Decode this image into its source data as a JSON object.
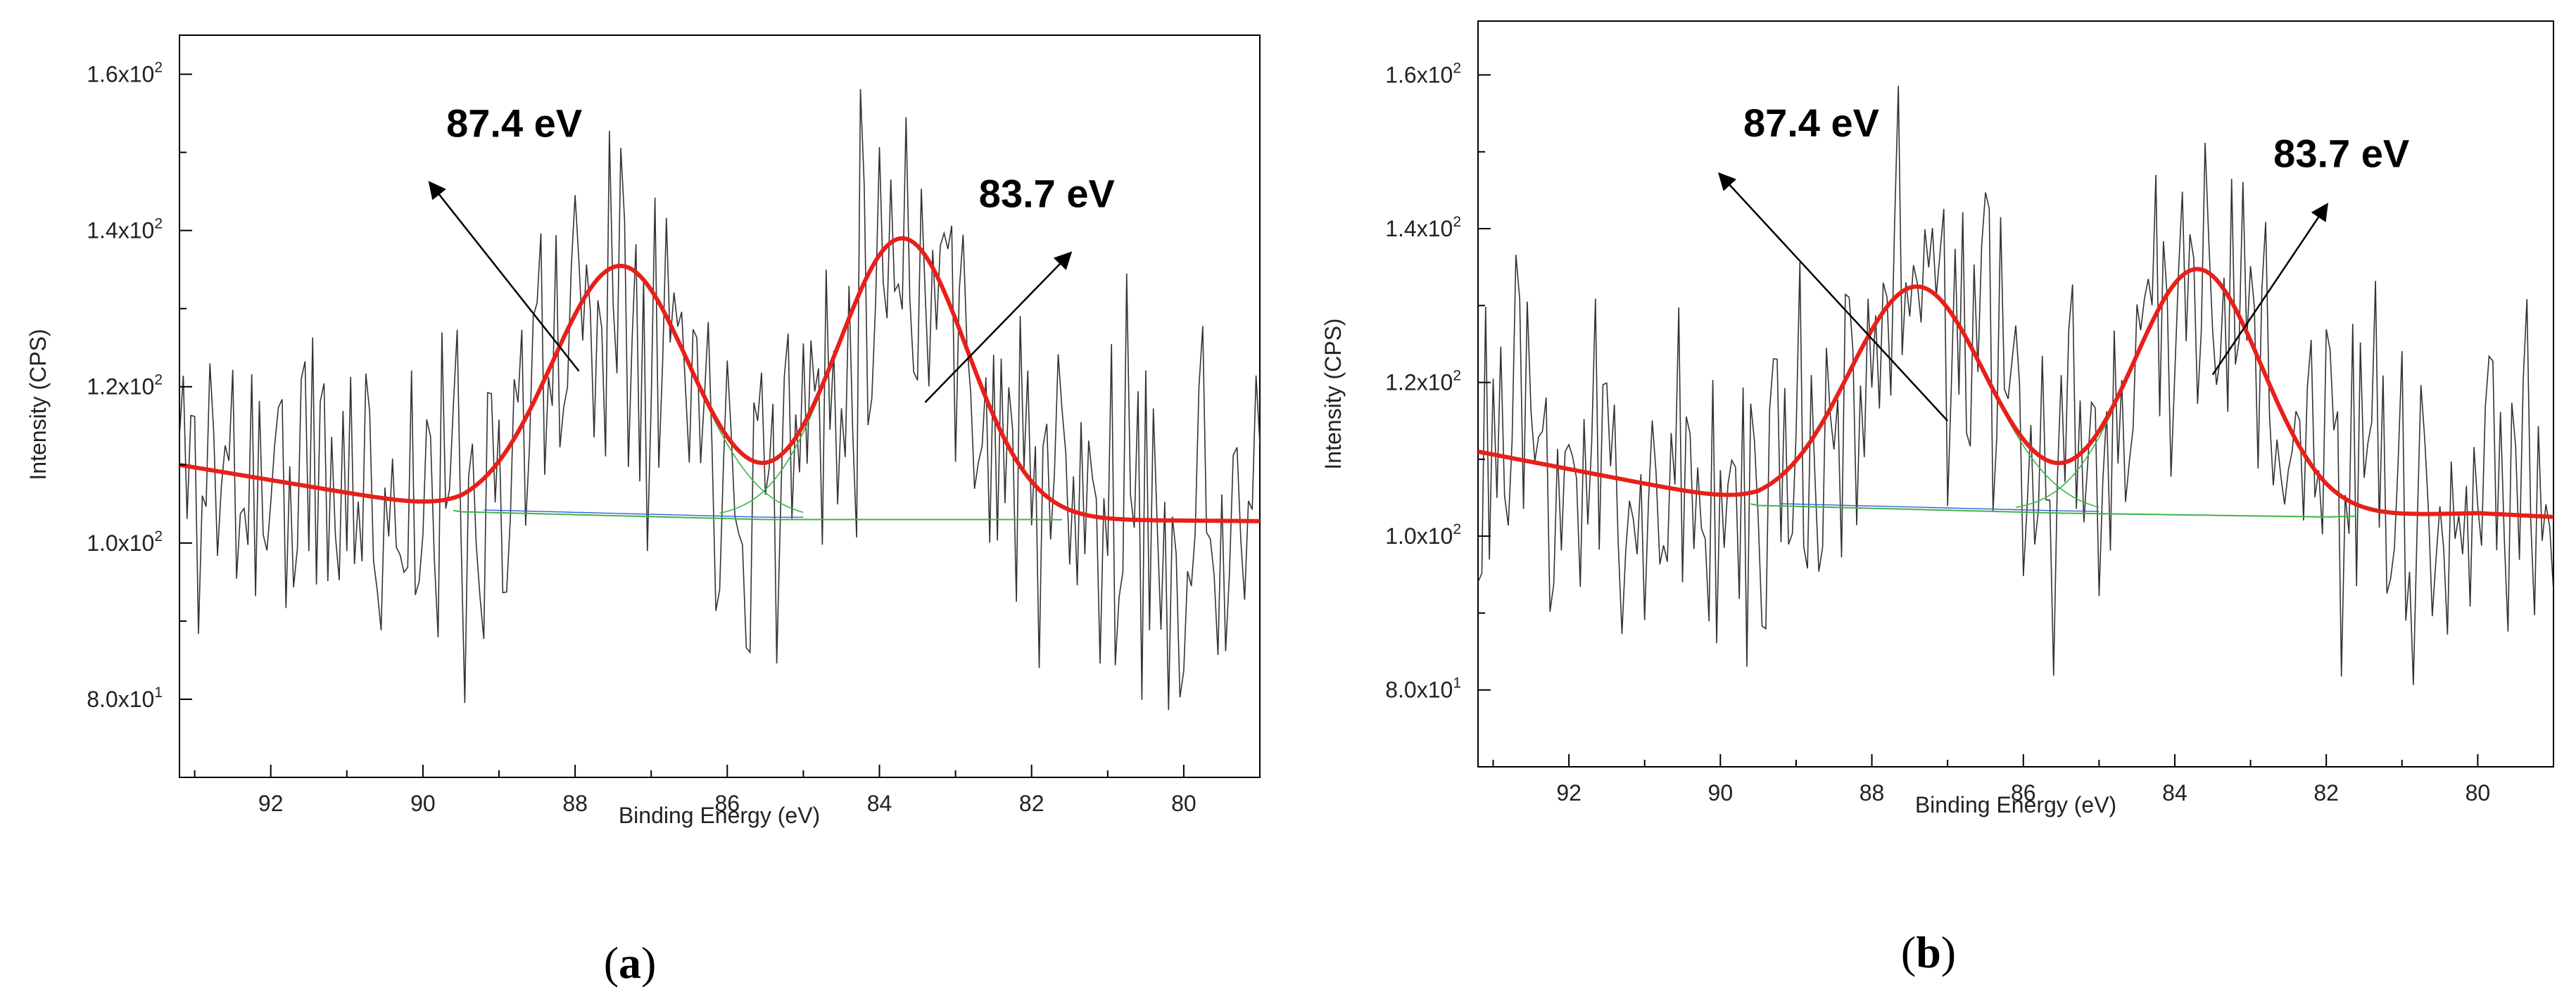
{
  "chart_data": [
    {
      "type": "line",
      "panel_label": "(a)",
      "panel_letter": "a",
      "xlabel": "Binding Energy (eV)",
      "ylabel": "Intensity (CPS)",
      "xlim": [
        93.2,
        79.0
      ],
      "ylim": [
        70,
        165
      ],
      "x_ticks": [
        92,
        90,
        88,
        86,
        84,
        82,
        80
      ],
      "x_tick_labels": [
        "92",
        "90",
        "88",
        "86",
        "84",
        "82",
        "80"
      ],
      "y_ticks": [
        80,
        100,
        120,
        140,
        160
      ],
      "y_tick_labels": [
        {
          "mantissa": "8.0x10",
          "exp": "1"
        },
        {
          "mantissa": "1.0x10",
          "exp": "2"
        },
        {
          "mantissa": "1.2x10",
          "exp": "2"
        },
        {
          "mantissa": "1.4x10",
          "exp": "2"
        },
        {
          "mantissa": "1.6x10",
          "exp": "2"
        }
      ],
      "series": [
        {
          "name": "raw",
          "color": "#333333",
          "seed": 11
        },
        {
          "name": "fit",
          "color": "#e8201a",
          "baseline": [
            [
              93.2,
              110
            ],
            [
              89.5,
              104
            ],
            [
              85.5,
              103
            ],
            [
              82.0,
              103
            ],
            [
              79.0,
              102.8
            ]
          ],
          "peaks": [
            {
              "center": 87.4,
              "height": 32,
              "sigma": 0.9
            },
            {
              "center": 83.7,
              "height": 36,
              "sigma": 0.85
            }
          ]
        },
        {
          "name": "component-baseline",
          "color": "#3cb44b"
        }
      ],
      "annotations": [
        {
          "text": "87.4 eV",
          "x": 88.8,
          "y": 152,
          "arrow_from": [
            87.95,
            122
          ],
          "arrow_to": [
            89.9,
            146
          ]
        },
        {
          "text": "83.7 eV",
          "x": 81.8,
          "y": 143,
          "arrow_from": [
            83.4,
            118
          ],
          "arrow_to": [
            81.5,
            137
          ]
        }
      ]
    },
    {
      "type": "line",
      "panel_label": "(b)",
      "panel_letter": "b",
      "xlabel": "Binding Energy (eV)",
      "ylabel": "Intensity (CPS)",
      "xlim": [
        93.2,
        79.0
      ],
      "ylim": [
        70,
        167
      ],
      "x_ticks": [
        92,
        90,
        88,
        86,
        84,
        82,
        80
      ],
      "x_tick_labels": [
        "92",
        "90",
        "88",
        "86",
        "84",
        "82",
        "80"
      ],
      "y_ticks": [
        80,
        100,
        120,
        140,
        160
      ],
      "y_tick_labels": [
        {
          "mantissa": "8.0x10",
          "exp": "1"
        },
        {
          "mantissa": "1.0x10",
          "exp": "2"
        },
        {
          "mantissa": "1.2x10",
          "exp": "2"
        },
        {
          "mantissa": "1.4x10",
          "exp": "2"
        },
        {
          "mantissa": "1.6x10",
          "exp": "2"
        }
      ],
      "series": [
        {
          "name": "raw",
          "color": "#333333",
          "seed": 23
        },
        {
          "name": "fit",
          "color": "#e8201a",
          "baseline": [
            [
              93.2,
              111
            ],
            [
              89.5,
              104
            ],
            [
              85.5,
              103
            ],
            [
              82.0,
              102.5
            ],
            [
              80.0,
              103
            ],
            [
              79.0,
              102.5
            ]
          ],
          "peaks": [
            {
              "center": 87.4,
              "height": 29,
              "sigma": 0.9
            },
            {
              "center": 83.7,
              "height": 32,
              "sigma": 0.85
            }
          ]
        },
        {
          "name": "component-baseline",
          "color": "#3cb44b"
        }
      ],
      "annotations": [
        {
          "text": "87.4 eV",
          "x": 88.8,
          "y": 152,
          "arrow_from": [
            87.0,
            115
          ],
          "arrow_to": [
            90.0,
            147
          ]
        },
        {
          "text": "83.7 eV",
          "x": 81.8,
          "y": 148,
          "arrow_from": [
            83.5,
            121
          ],
          "arrow_to": [
            82.0,
            143
          ]
        }
      ]
    }
  ]
}
